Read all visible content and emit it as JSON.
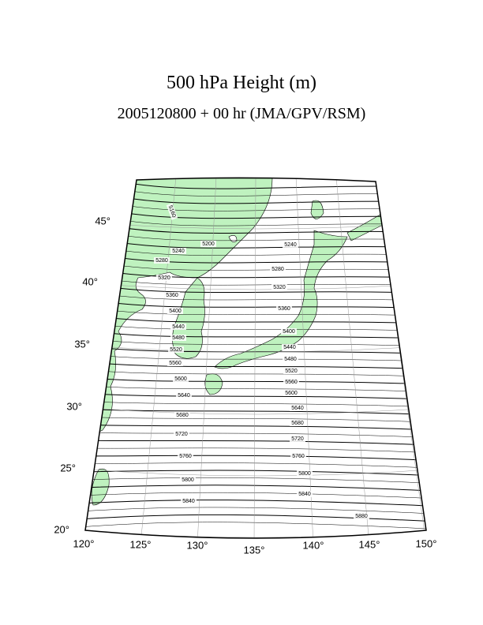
{
  "title": "500 hPa Height (m)",
  "subtitle": "2005120800 + 00 hr (JMA/GPV/RSM)",
  "latitude_labels": [
    "20°",
    "25°",
    "30°",
    "35°",
    "40°",
    "45°"
  ],
  "longitude_labels": [
    "120°",
    "125°",
    "130°",
    "135°",
    "140°",
    "145°",
    "150°"
  ],
  "contour_labels": [
    "5160",
    "5200",
    "5240",
    "5240",
    "5280",
    "5280",
    "5320",
    "5320",
    "5360",
    "5360",
    "5400",
    "5400",
    "5440",
    "5440",
    "5480",
    "5480",
    "5520",
    "5520",
    "5560",
    "5560",
    "5600",
    "5600",
    "5640",
    "5640",
    "5680",
    "5680",
    "5720",
    "5720",
    "5760",
    "5760",
    "5800",
    "5800",
    "5840",
    "5840",
    "5880"
  ]
}
